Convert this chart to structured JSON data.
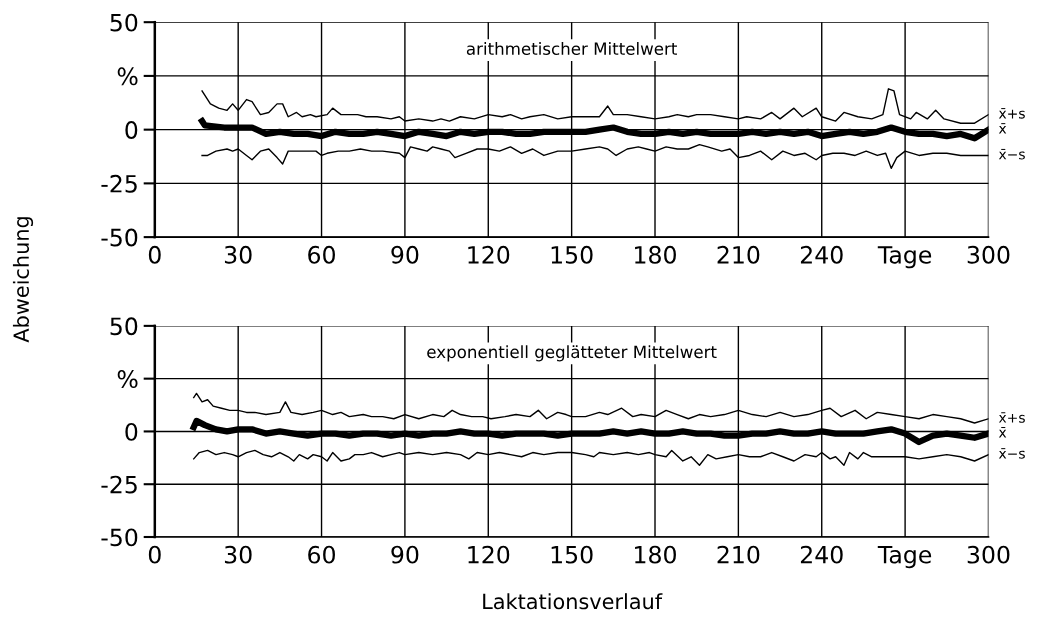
{
  "chart_data": [
    {
      "type": "line",
      "title": "arithmetischer Mittelwert",
      "ylabel": "Abweichung",
      "xlim": [
        0,
        300
      ],
      "xticks": [
        0,
        30,
        60,
        90,
        120,
        150,
        180,
        210,
        240,
        {
          "value": 270,
          "label": "Tage"
        },
        300
      ],
      "ylim": [
        -50,
        50
      ],
      "yticks": [
        -50,
        -25,
        0,
        {
          "value": 25,
          "label": "%"
        },
        50
      ],
      "grid": true,
      "marker": "none",
      "line_style": "solid",
      "series": [
        {
          "name": "x̄+s",
          "color": "#000000",
          "x": [
            17,
            20,
            23,
            26,
            28,
            30,
            33,
            35,
            38,
            41,
            44,
            46,
            48,
            51,
            53,
            56,
            58,
            62,
            64,
            67,
            70,
            73,
            76,
            80,
            85,
            88,
            90,
            95,
            100,
            103,
            106,
            110,
            115,
            120,
            125,
            128,
            132,
            135,
            140,
            145,
            150,
            155,
            160,
            163,
            165,
            170,
            175,
            180,
            185,
            188,
            192,
            195,
            200,
            205,
            210,
            213,
            218,
            222,
            225,
            230,
            233,
            238,
            240,
            245,
            248,
            253,
            258,
            262,
            264,
            266,
            268,
            272,
            274,
            278,
            281,
            284,
            290,
            295,
            300
          ],
          "values": [
            18,
            12,
            10,
            9,
            12,
            9,
            14,
            13,
            7,
            8,
            12,
            12,
            6,
            8,
            6,
            7,
            6,
            7,
            10,
            7,
            7,
            7,
            6,
            6,
            5,
            6,
            4,
            5,
            4,
            5,
            4,
            6,
            5,
            7,
            6,
            7,
            5,
            6,
            7,
            5,
            6,
            6,
            6,
            11,
            7,
            7,
            6,
            5,
            6,
            7,
            6,
            7,
            7,
            6,
            5,
            6,
            5,
            8,
            5,
            10,
            6,
            10,
            6,
            4,
            8,
            6,
            5,
            7,
            19,
            18,
            7,
            5,
            8,
            5,
            9,
            5,
            3,
            3,
            7
          ]
        },
        {
          "name": "x̄",
          "color": "#000000",
          "x": [
            17,
            18,
            25,
            30,
            35,
            40,
            45,
            50,
            55,
            60,
            65,
            70,
            75,
            80,
            85,
            90,
            95,
            100,
            105,
            110,
            115,
            120,
            125,
            130,
            135,
            140,
            145,
            150,
            155,
            160,
            165,
            170,
            175,
            180,
            185,
            190,
            195,
            200,
            205,
            210,
            215,
            220,
            225,
            230,
            235,
            240,
            245,
            250,
            255,
            260,
            265,
            270,
            275,
            280,
            285,
            290,
            295,
            300
          ],
          "values": [
            4,
            2,
            1,
            1,
            1,
            -2,
            -1,
            -2,
            -2,
            -3,
            -1,
            -2,
            -2,
            -1,
            -2,
            -3,
            -1,
            -2,
            -3,
            -1,
            -2,
            -1,
            -1,
            -2,
            -2,
            -1,
            -1,
            -1,
            -1,
            0,
            1,
            -1,
            -2,
            -2,
            -1,
            -2,
            -1,
            -2,
            -2,
            -2,
            -1,
            -2,
            -1,
            -2,
            -1,
            -3,
            -2,
            -1,
            -2,
            -1,
            1,
            -1,
            -2,
            -2,
            -3,
            -2,
            -4,
            0
          ]
        },
        {
          "name": "x̄−s",
          "color": "#000000",
          "x": [
            17,
            19,
            22,
            26,
            28,
            30,
            33,
            35,
            38,
            41,
            44,
            46,
            48,
            53,
            58,
            60,
            62,
            66,
            70,
            74,
            78,
            82,
            88,
            90,
            92,
            95,
            98,
            100,
            103,
            106,
            108,
            112,
            116,
            120,
            124,
            128,
            132,
            136,
            140,
            145,
            150,
            155,
            160,
            163,
            166,
            170,
            174,
            177,
            180,
            184,
            188,
            192,
            196,
            199,
            204,
            207,
            210,
            214,
            218,
            222,
            226,
            230,
            234,
            238,
            240,
            244,
            248,
            252,
            256,
            260,
            263,
            265,
            267,
            270,
            275,
            280,
            285,
            290,
            295,
            300
          ],
          "values": [
            -12,
            -12,
            -10,
            -9,
            -10,
            -9,
            -12,
            -14,
            -10,
            -9,
            -13,
            -16,
            -10,
            -10,
            -10,
            -12,
            -11,
            -10,
            -10,
            -9,
            -10,
            -10,
            -11,
            -13,
            -8,
            -9,
            -10,
            -8,
            -9,
            -10,
            -13,
            -11,
            -9,
            -9,
            -10,
            -8,
            -11,
            -9,
            -12,
            -10,
            -10,
            -9,
            -8,
            -9,
            -12,
            -9,
            -8,
            -9,
            -10,
            -8,
            -9,
            -9,
            -7,
            -8,
            -10,
            -9,
            -13,
            -12,
            -10,
            -14,
            -10,
            -12,
            -11,
            -14,
            -12,
            -11,
            -11,
            -12,
            -10,
            -12,
            -11,
            -18,
            -13,
            -10,
            -12,
            -11,
            -11,
            -12,
            -12,
            -12
          ]
        }
      ]
    },
    {
      "type": "line",
      "title": "exponentiell geglätteter Mittelwert",
      "xlabel": "Laktationsverlauf",
      "xlim": [
        0,
        300
      ],
      "xticks": [
        0,
        30,
        60,
        90,
        120,
        150,
        180,
        210,
        240,
        {
          "value": 270,
          "label": "Tage"
        },
        300
      ],
      "ylim": [
        -50,
        50
      ],
      "yticks": [
        -50,
        -25,
        0,
        {
          "value": 25,
          "label": "%"
        },
        50
      ],
      "grid": true,
      "marker": "none",
      "line_style": "solid",
      "series": [
        {
          "name": "x̄+s",
          "color": "#000000",
          "x": [
            14,
            15,
            17,
            19,
            21,
            24,
            27,
            30,
            33,
            36,
            40,
            45,
            47,
            49,
            53,
            57,
            60,
            64,
            67,
            70,
            75,
            78,
            82,
            86,
            90,
            95,
            100,
            104,
            107,
            110,
            114,
            118,
            121,
            126,
            130,
            135,
            138,
            141,
            145,
            148,
            150,
            155,
            160,
            163,
            168,
            172,
            175,
            180,
            184,
            188,
            192,
            196,
            200,
            205,
            210,
            215,
            220,
            225,
            230,
            235,
            240,
            243,
            247,
            252,
            256,
            260,
            265,
            270,
            275,
            280,
            285,
            290,
            295,
            300
          ],
          "values": [
            16,
            18,
            14,
            15,
            12,
            11,
            10,
            10,
            9,
            9,
            8,
            9,
            14,
            9,
            8,
            9,
            10,
            8,
            9,
            7,
            8,
            7,
            7,
            6,
            8,
            6,
            8,
            7,
            10,
            8,
            7,
            7,
            6,
            7,
            8,
            7,
            10,
            6,
            9,
            8,
            7,
            7,
            9,
            8,
            11,
            7,
            8,
            7,
            10,
            8,
            6,
            8,
            7,
            8,
            10,
            8,
            7,
            9,
            7,
            8,
            10,
            11,
            7,
            10,
            6,
            9,
            8,
            7,
            6,
            8,
            7,
            6,
            4,
            6
          ]
        },
        {
          "name": "x̄",
          "color": "#000000",
          "x": [
            14,
            15,
            18,
            22,
            26,
            30,
            35,
            40,
            45,
            50,
            55,
            60,
            65,
            70,
            75,
            80,
            85,
            90,
            95,
            100,
            105,
            110,
            115,
            120,
            125,
            130,
            135,
            140,
            145,
            150,
            155,
            160,
            165,
            170,
            175,
            180,
            185,
            190,
            195,
            200,
            205,
            210,
            215,
            220,
            225,
            230,
            235,
            240,
            245,
            250,
            255,
            260,
            265,
            270,
            275,
            280,
            285,
            290,
            295,
            300
          ],
          "values": [
            2,
            5,
            3,
            1,
            0,
            1,
            1,
            -1,
            0,
            -1,
            -2,
            -1,
            -1,
            -2,
            -1,
            -1,
            -2,
            -1,
            -2,
            -1,
            -1,
            0,
            -1,
            -1,
            -2,
            -1,
            -1,
            -1,
            -2,
            -1,
            -1,
            -1,
            0,
            -1,
            0,
            -1,
            -1,
            0,
            -1,
            -1,
            -2,
            -2,
            -1,
            -1,
            0,
            -1,
            -1,
            0,
            -1,
            -1,
            -1,
            0,
            1,
            -1,
            -5,
            -2,
            -1,
            -2,
            -3,
            -1
          ]
        },
        {
          "name": "x̄−s",
          "color": "#000000",
          "x": [
            14,
            16,
            19,
            22,
            25,
            28,
            30,
            33,
            36,
            39,
            42,
            45,
            48,
            50,
            52,
            55,
            57,
            60,
            62,
            64,
            67,
            70,
            72,
            75,
            78,
            82,
            85,
            88,
            90,
            95,
            100,
            105,
            110,
            113,
            116,
            120,
            124,
            128,
            132,
            136,
            140,
            145,
            150,
            155,
            158,
            160,
            165,
            170,
            174,
            178,
            180,
            184,
            186,
            190,
            193,
            196,
            199,
            202,
            206,
            210,
            214,
            218,
            222,
            226,
            230,
            234,
            238,
            240,
            243,
            245,
            248,
            250,
            253,
            255,
            258,
            262,
            266,
            270,
            275,
            280,
            285,
            290,
            295,
            300
          ],
          "values": [
            -13,
            -10,
            -9,
            -11,
            -10,
            -11,
            -12,
            -10,
            -9,
            -11,
            -12,
            -10,
            -12,
            -14,
            -11,
            -13,
            -11,
            -12,
            -14,
            -10,
            -14,
            -13,
            -11,
            -11,
            -10,
            -12,
            -11,
            -10,
            -11,
            -10,
            -11,
            -10,
            -11,
            -13,
            -10,
            -11,
            -10,
            -11,
            -12,
            -10,
            -11,
            -10,
            -10,
            -11,
            -12,
            -10,
            -11,
            -10,
            -11,
            -10,
            -11,
            -12,
            -9,
            -14,
            -12,
            -16,
            -11,
            -13,
            -12,
            -11,
            -12,
            -12,
            -10,
            -12,
            -14,
            -11,
            -12,
            -10,
            -13,
            -12,
            -16,
            -10,
            -13,
            -10,
            -12,
            -12,
            -12,
            -12,
            -13,
            -12,
            -11,
            -12,
            -14,
            -11
          ]
        }
      ]
    }
  ]
}
